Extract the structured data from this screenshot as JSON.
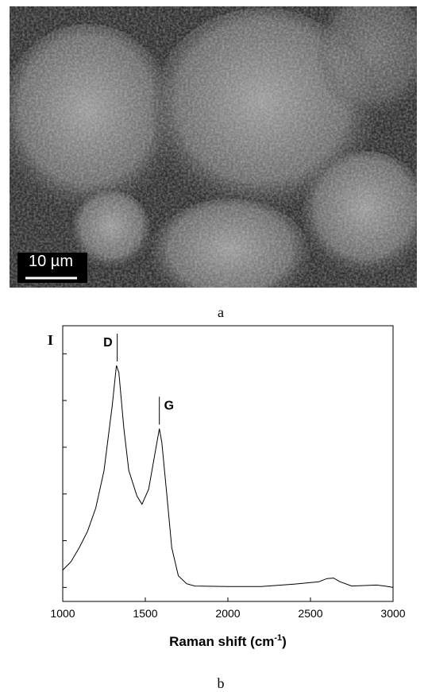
{
  "figure": {
    "scale_bar": "10 µm",
    "captions": [
      "a",
      "b"
    ]
  },
  "chart_data": {
    "type": "line",
    "y_label": "I",
    "x_label": {
      "text": "Raman shift (cm",
      "superscript": "-1",
      "suffix": ")"
    },
    "annotations": [
      {
        "text": "D",
        "x": 1330
      },
      {
        "text": "G",
        "x": 1585
      }
    ],
    "x": [
      1000,
      1050,
      1100,
      1150,
      1200,
      1250,
      1300,
      1325,
      1340,
      1370,
      1400,
      1450,
      1480,
      1520,
      1560,
      1585,
      1600,
      1630,
      1660,
      1700,
      1750,
      1800,
      2000,
      2200,
      2400,
      2550,
      2600,
      2640,
      2680,
      2750,
      2900,
      2950,
      3000
    ],
    "values": [
      0.37,
      0.55,
      0.85,
      1.2,
      1.7,
      2.5,
      3.9,
      4.75,
      4.6,
      3.4,
      2.5,
      1.95,
      1.78,
      2.1,
      2.9,
      3.4,
      3.1,
      2.0,
      0.85,
      0.25,
      0.08,
      0.03,
      0.02,
      0.02,
      0.07,
      0.12,
      0.19,
      0.2,
      0.12,
      0.03,
      0.05,
      0.03,
      0.0
    ],
    "color": "#000000",
    "xlim": [
      1000,
      3000
    ],
    "xticks": [
      1000,
      1500,
      2000,
      2500,
      3000
    ],
    "ylim": [
      -0.3,
      5.6
    ],
    "yticks": [
      0,
      1,
      2,
      3,
      4,
      5
    ]
  }
}
